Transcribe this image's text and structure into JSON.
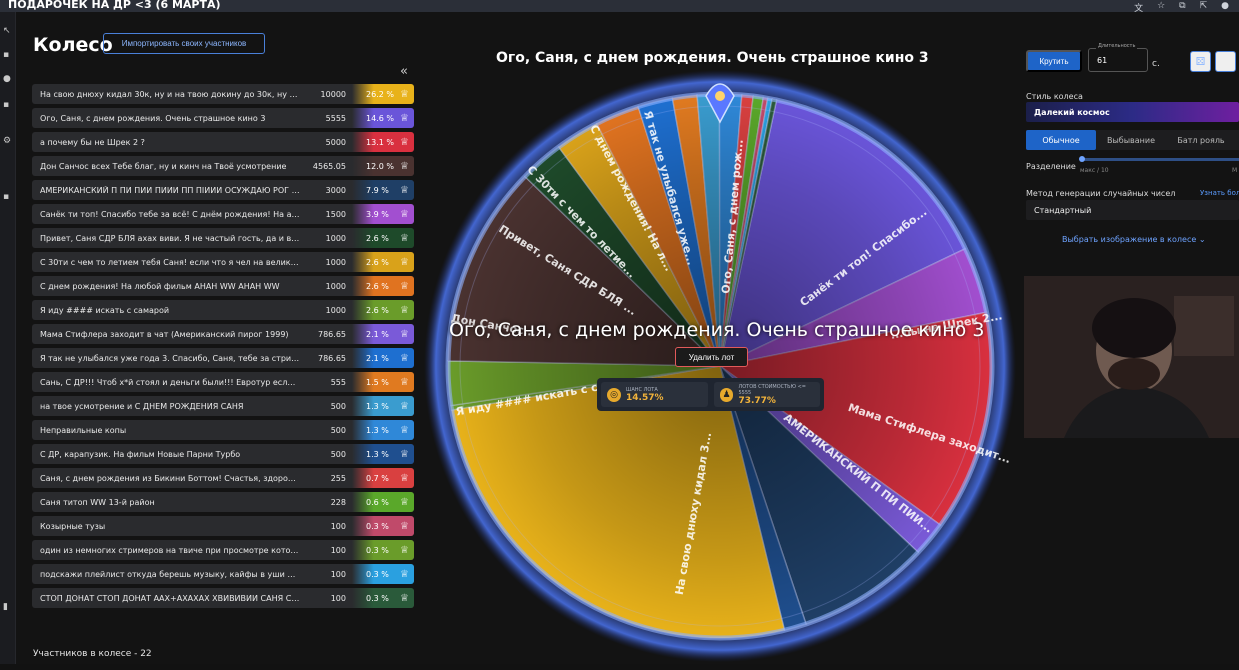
{
  "window": {
    "title": "ПОДАРОЧЕК НА ДР <3 (6 МАРТА)"
  },
  "header": {
    "title": "Колесо",
    "import_button": "Импортировать своих участников",
    "collapse_icon": "«"
  },
  "lots": [
    {
      "name": "На свою днюху кидал 30к, ну и на твою докину до 30к, ну а филь...",
      "amount": "10000",
      "percent": "26.2 %",
      "color": "#e8b21a"
    },
    {
      "name": "Ого, Саня, с днем рождения. Очень страшное кино 3",
      "amount": "5555",
      "percent": "14.6 %",
      "color": "#6a55d9"
    },
    {
      "name": "а почему бы не Шрек 2 ?",
      "amount": "5000",
      "percent": "13.1 %",
      "color": "#d9303f"
    },
    {
      "name": "Дон Санчос всех Тебе благ, ну и кинч на Твоё усмотрение",
      "amount": "4565.05",
      "percent": "12.0 %",
      "color": "#4a3230"
    },
    {
      "name": "АМЕРИКАНСКИЙ П ПИ ПИИ ПИИИ ПП ПІИИИ ОСУЖДАЮ РОГ С ...",
      "amount": "3000",
      "percent": "7.9 %",
      "color": "#1f3f66"
    },
    {
      "name": "Санёк ти топ! Спасибо тебе за всё! С днём рождения! На а мерикан...",
      "amount": "1500",
      "percent": "3.9 %",
      "color": "#a24fd0"
    },
    {
      "name": "Привет, Саня СДР БЛЯ ахах виви. Я не частый гость, да и в чате по...",
      "amount": "1000",
      "percent": "2.6 %",
      "color": "#1e4a2a"
    },
    {
      "name": "С 30ти с чем то летием тебя Саня! если что я чел на велике в вк хы",
      "amount": "1000",
      "percent": "2.6 %",
      "color": "#d9a21a"
    },
    {
      "name": "С днем рождения! На любой фильм АНАН WW АНАН WW",
      "amount": "1000",
      "percent": "2.6 %",
      "color": "#e07320"
    },
    {
      "name": "Я иду #### искать с самарой",
      "amount": "1000",
      "percent": "2.6 %",
      "color": "#6a9c2a"
    },
    {
      "name": "Мама Стифлера заходит в чат (Американский пирог 1999)",
      "amount": "786.65",
      "percent": "2.1 %",
      "color": "#7a5ad8"
    },
    {
      "name": "Я так не улыбался уже года 3. Спасибо, Саня, тебе за стримы",
      "amount": "786.65",
      "percent": "2.1 %",
      "color": "#1e6fd0"
    },
    {
      "name": "Сань, С ДР!!! Чтоб х*й стоял и деньги были!!! Евротур если нельзя, т...",
      "amount": "555",
      "percent": "1.5 %",
      "color": "#e07a20"
    },
    {
      "name": "на твое усмотрение и С ДНЕМ РОЖДЕНИЯ САНЯ",
      "amount": "500",
      "percent": "1.3 %",
      "color": "#3a9ccf"
    },
    {
      "name": "Неправильные копы",
      "amount": "500",
      "percent": "1.3 %",
      "color": "#2f88d8"
    },
    {
      "name": "С ДР, карапузик. На фильм Новые Парни Турбо",
      "amount": "500",
      "percent": "1.3 %",
      "color": "#1f4f8f"
    },
    {
      "name": "Саня, с днем рождения из Бикини Боттом! Счастья, здоровья, всего...",
      "amount": "255",
      "percent": "0.7 %",
      "color": "#d94040"
    },
    {
      "name": "Саня титоп WW 13-й район",
      "amount": "228",
      "percent": "0.6 %",
      "color": "#5aa82a"
    },
    {
      "name": "Козырные тузы",
      "amount": "100",
      "percent": "0.3 %",
      "color": "#c04a6a"
    },
    {
      "name": "один из немногих стримеров на твиче при просмотре которого не о...",
      "amount": "100",
      "percent": "0.3 %",
      "color": "#6a9c2a"
    },
    {
      "name": "подскажи плейлист откуда берешь музыку, кайфы в уши идут. трени...",
      "amount": "100",
      "percent": "0.3 %",
      "color": "#2aa0e0"
    },
    {
      "name": "СТОП ДОНАТ СТОП ДОНАТ ААХ+АХАХАХ ХВИВИВИИ САНЯ С ДР С...",
      "amount": "100",
      "percent": "0.3 %",
      "color": "#2a5a3a"
    }
  ],
  "footer": {
    "participants": "Участников в колесе - 22"
  },
  "wheel": {
    "winner_top": "Ого, Саня, с днем рождения. Очень страшное кино 3",
    "winner_center": "Ого, Саня, с днем рождения. Очень страшное кино 3",
    "delete_button": "Удалить лот",
    "stat_chance_label": "ШАНС ЛОТА",
    "stat_chance_value": "14.57%",
    "stat_cost_label": "ЛОТОВ СТОИМОСТЬЮ <= 5555",
    "stat_cost_value": "73.77%",
    "slice_labels": [
      {
        "text": "Ого, Саня, с днем рож...",
        "angle": -85,
        "dist": 150
      },
      {
        "text": "Санёк ти топ! Спасибо...",
        "angle": -37,
        "dist": 180
      },
      {
        "text": "...бы не Шрек 2...",
        "angle": -10,
        "dist": 230
      },
      {
        "text": "Мама Стифлера заходит...",
        "angle": 18,
        "dist": 220
      },
      {
        "text": "АМЕРИКАНСКИЙ П ПИ ПИИ...",
        "angle": 38,
        "dist": 175
      },
      {
        "text": "На свою днюху кидал 3...",
        "angle": 100,
        "dist": 150
      },
      {
        "text": "Я иду #### искать с с...",
        "angle": 170,
        "dist": 190
      },
      {
        "text": "Привет, Саня СДР БЛЯ ...",
        "angle": 212,
        "dist": 180
      },
      {
        "text": "С 30ти с чем то летие...",
        "angle": 226,
        "dist": 200
      },
      {
        "text": "С днем рождения! На л...",
        "angle": 242,
        "dist": 190
      },
      {
        "text": "Я так не улыбался уже...",
        "angle": 254,
        "dist": 185
      },
      {
        "text": "Дон Санчос...",
        "angle": 190,
        "dist": 230
      }
    ]
  },
  "settings": {
    "spin_button": "Крутить",
    "duration_label": "Длительность",
    "duration_value": "61",
    "duration_unit": "с.",
    "style_label": "Стиль колеса",
    "style_value": "Далекий космос",
    "modes": [
      "Обычное",
      "Выбывание",
      "Батл рояль"
    ],
    "split_label": "Разделение",
    "split_min": "макс / 10",
    "split_max": "М",
    "rng_label": "Метод генерации случайных чисел",
    "rng_link": "Узнать бол",
    "rng_value": "Стандартный",
    "choose_image": "Выбрать изображение в колесе"
  }
}
